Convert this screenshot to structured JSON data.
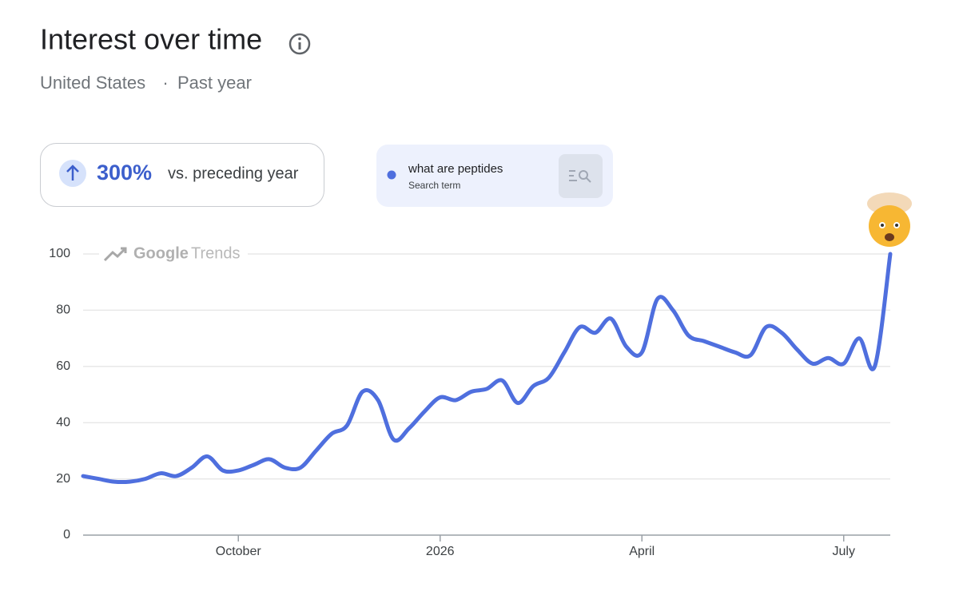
{
  "header": {
    "title": "Interest over time",
    "location": "United States",
    "separator": "·",
    "period": "Past year"
  },
  "change": {
    "value": "300%",
    "label": "vs. preceding year"
  },
  "watermark": {
    "brand": "Google",
    "product": "Trends"
  },
  "chart_data": {
    "type": "line",
    "categories": [
      null,
      null,
      null,
      null,
      null,
      null,
      null,
      null,
      null,
      null,
      "October",
      null,
      null,
      null,
      null,
      null,
      null,
      null,
      null,
      null,
      null,
      null,
      null,
      "2026",
      null,
      null,
      null,
      null,
      null,
      null,
      null,
      null,
      null,
      null,
      null,
      null,
      "April",
      null,
      null,
      null,
      null,
      null,
      null,
      null,
      null,
      null,
      null,
      null,
      null,
      "July",
      null,
      null,
      null
    ],
    "series": [
      {
        "name": "what are peptides",
        "caption": "Search term",
        "color": "#4f6fde",
        "values": [
          21,
          20,
          19,
          19,
          20,
          22,
          21,
          24,
          28,
          23,
          23,
          25,
          27,
          24,
          24,
          30,
          36,
          39,
          51,
          48,
          34,
          38,
          44,
          49,
          48,
          51,
          52,
          55,
          47,
          53,
          56,
          65,
          74,
          72,
          77,
          67,
          65,
          84,
          80,
          71,
          69,
          67,
          65,
          64,
          74,
          72,
          66,
          61,
          63,
          61,
          70,
          60,
          100
        ]
      }
    ],
    "ylim": [
      0,
      100
    ],
    "yticks": [
      0,
      20,
      40,
      60,
      80,
      100
    ],
    "grid": true
  }
}
